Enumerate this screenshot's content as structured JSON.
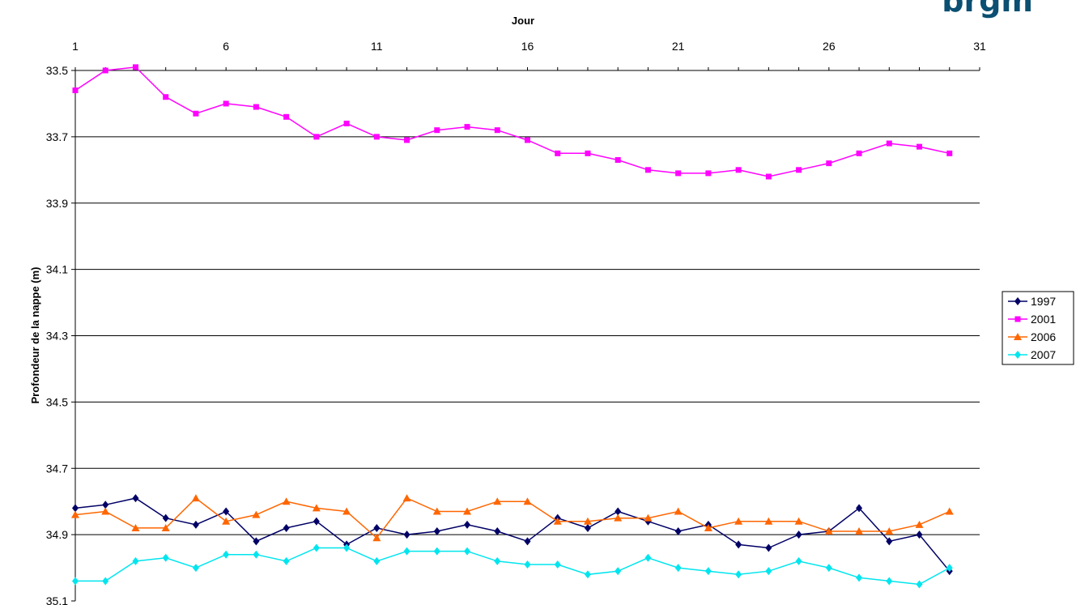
{
  "logo_text": "brgm",
  "chart_data": {
    "type": "line",
    "xlabel": "Jour",
    "ylabel": "Profondeur de la nappe (m)",
    "x_ticks": [
      1,
      6,
      11,
      16,
      21,
      26,
      31
    ],
    "x_range": [
      1,
      31
    ],
    "y_ticks": [
      "33.5",
      "33.7",
      "33.9",
      "34.1",
      "34.3",
      "34.5",
      "34.7",
      "34.9",
      "35.1"
    ],
    "y_range": [
      33.5,
      35.1
    ],
    "y_axis_inverted": true,
    "x_axis_position": "top",
    "grid": "horizontal",
    "legend_position": "right",
    "x": [
      1,
      2,
      3,
      4,
      5,
      6,
      7,
      8,
      9,
      10,
      11,
      12,
      13,
      14,
      15,
      16,
      17,
      18,
      19,
      20,
      21,
      22,
      23,
      24,
      25,
      26,
      27,
      28,
      29,
      30
    ],
    "series": [
      {
        "name": "1997",
        "color": "#000066",
        "marker": "diamond",
        "values": [
          34.82,
          34.81,
          34.79,
          34.85,
          34.87,
          34.83,
          34.92,
          34.88,
          34.86,
          34.93,
          34.88,
          34.9,
          34.89,
          34.87,
          34.89,
          34.92,
          34.85,
          34.88,
          34.83,
          34.86,
          34.89,
          34.87,
          34.93,
          34.94,
          34.9,
          34.89,
          34.82,
          34.92,
          34.9,
          35.01
        ]
      },
      {
        "name": "2001",
        "color": "#ff00ff",
        "marker": "square",
        "values": [
          33.56,
          33.5,
          33.49,
          33.58,
          33.63,
          33.6,
          33.61,
          33.64,
          33.7,
          33.66,
          33.7,
          33.71,
          33.68,
          33.67,
          33.68,
          33.71,
          33.75,
          33.75,
          33.77,
          33.8,
          33.81,
          33.81,
          33.8,
          33.82,
          33.8,
          33.78,
          33.75,
          33.72,
          33.73,
          33.75
        ]
      },
      {
        "name": "2006",
        "color": "#ff6600",
        "marker": "triangle",
        "values": [
          34.84,
          34.83,
          34.88,
          34.88,
          34.79,
          34.86,
          34.84,
          34.8,
          34.82,
          34.83,
          34.91,
          34.79,
          34.83,
          34.83,
          34.8,
          34.8,
          34.86,
          34.86,
          34.85,
          34.85,
          34.83,
          34.88,
          34.86,
          34.86,
          34.86,
          34.89,
          34.89,
          34.89,
          34.87,
          34.83
        ]
      },
      {
        "name": "2007",
        "color": "#00e5ee",
        "marker": "diamond",
        "values": [
          35.04,
          35.04,
          34.98,
          34.97,
          35.0,
          34.96,
          34.96,
          34.98,
          34.94,
          34.94,
          34.98,
          34.95,
          34.95,
          34.95,
          34.98,
          34.99,
          34.99,
          35.02,
          35.01,
          34.97,
          35.0,
          35.01,
          35.02,
          35.01,
          34.98,
          35.0,
          35.03,
          35.04,
          35.05,
          35.0
        ]
      }
    ]
  }
}
